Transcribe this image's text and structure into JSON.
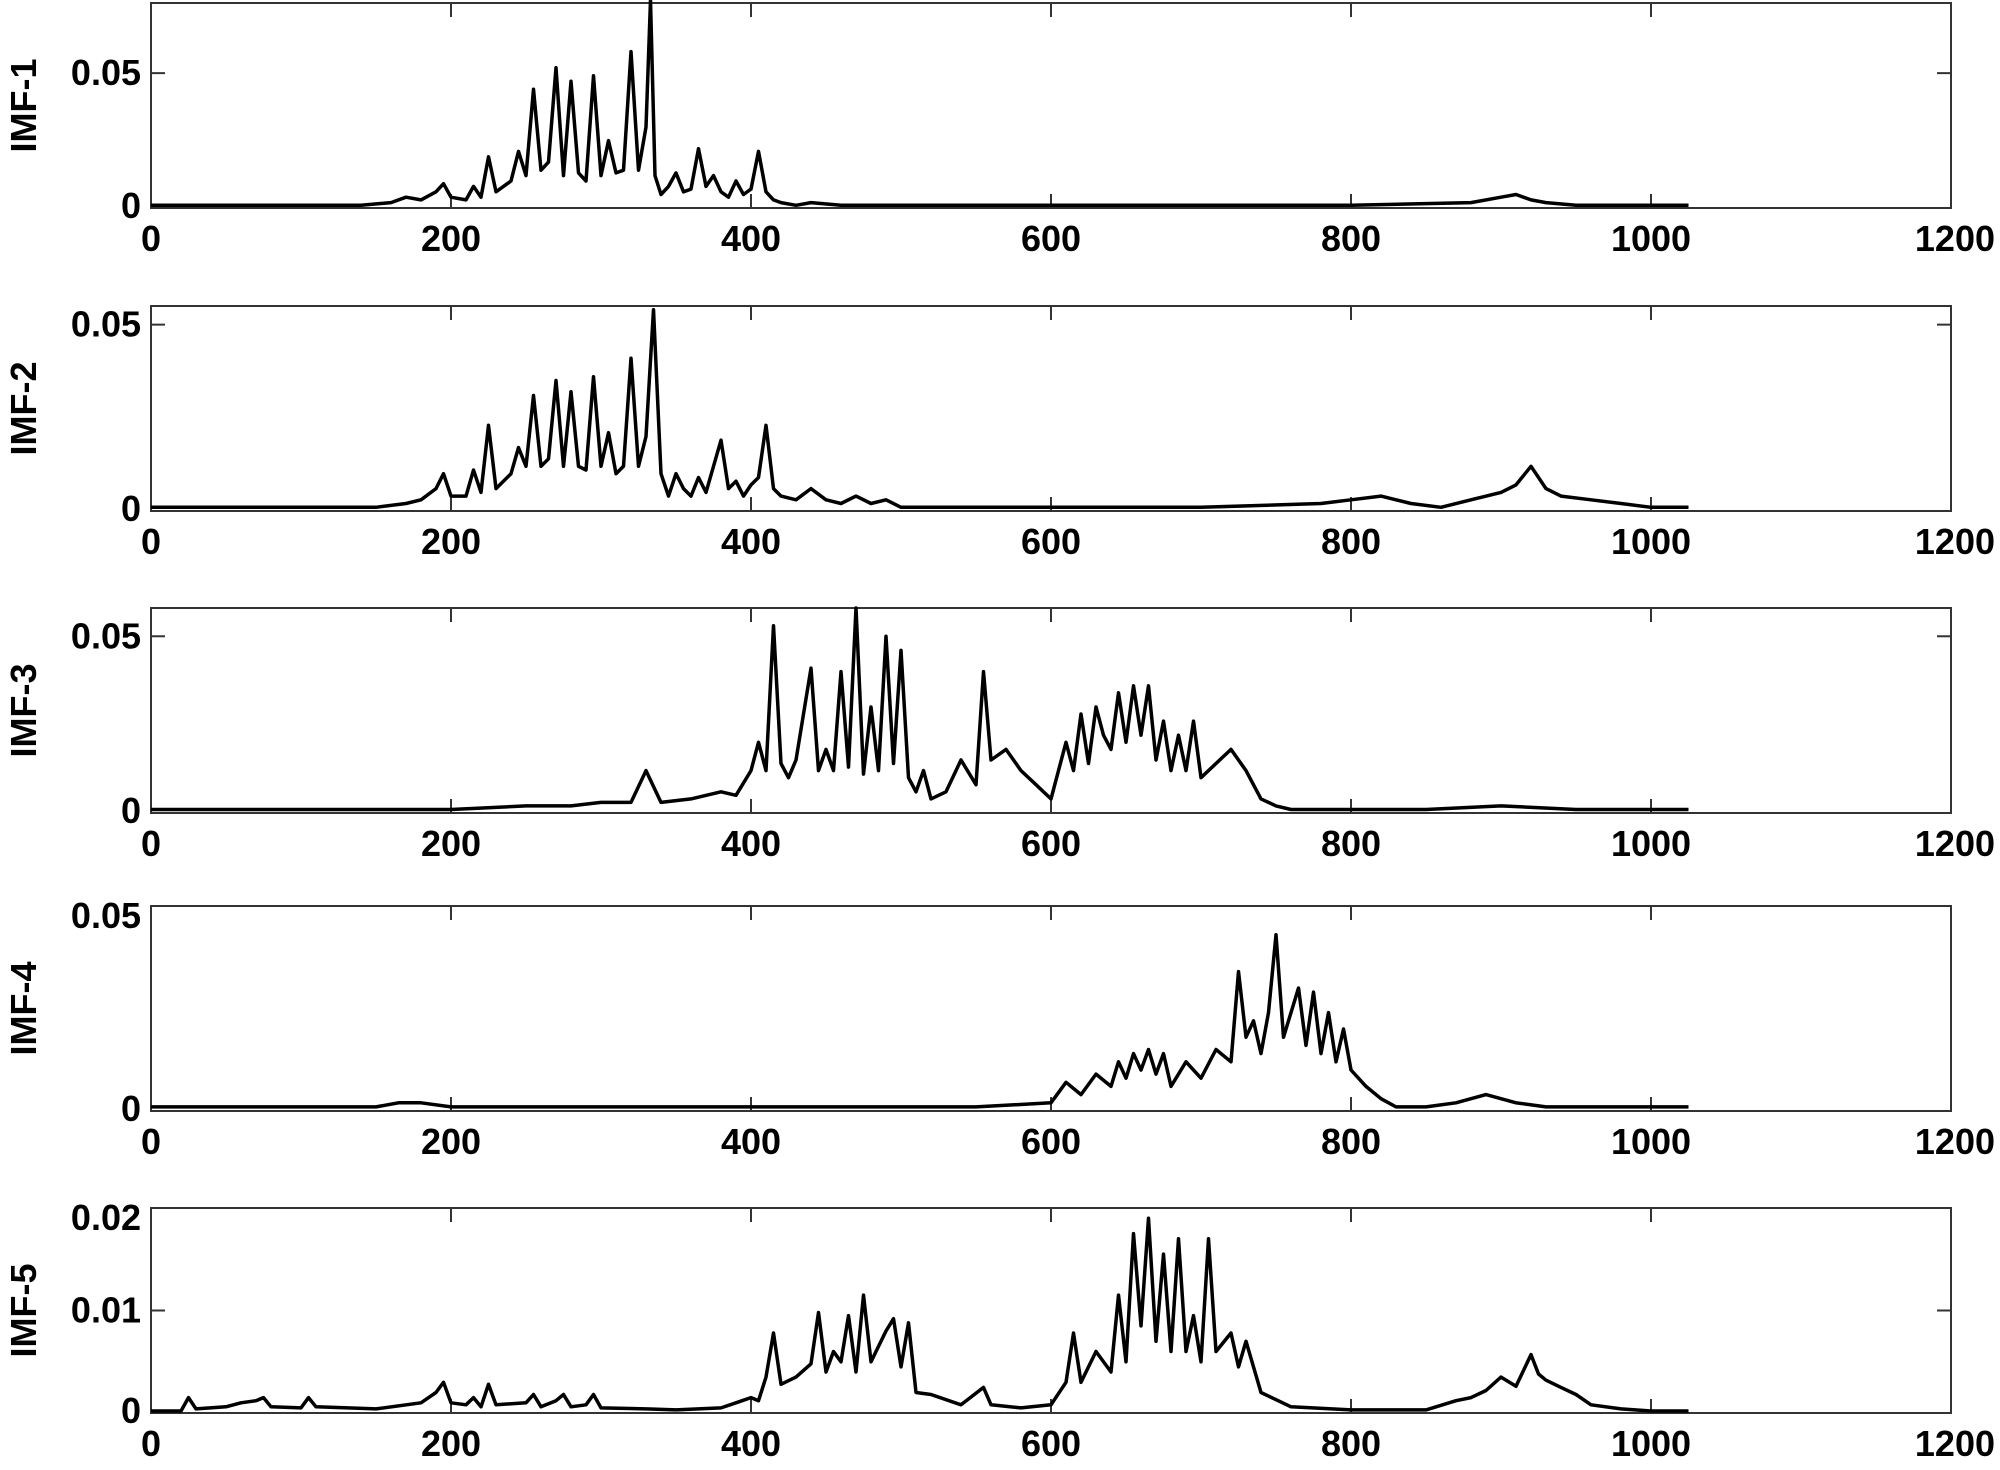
{
  "chart_data": [
    {
      "type": "line",
      "ylabel": "IMF-1",
      "xlim": [
        0,
        1200
      ],
      "ylim": [
        0,
        0.076
      ],
      "xticks": [
        "0",
        "200",
        "400",
        "600",
        "800",
        "1000",
        "1200"
      ],
      "yticks": [
        {
          "value": 0,
          "label": "0"
        },
        {
          "value": 0.05,
          "label": "0.05"
        }
      ],
      "x": [
        0,
        20,
        40,
        60,
        80,
        100,
        120,
        140,
        160,
        170,
        180,
        190,
        195,
        200,
        210,
        215,
        220,
        225,
        230,
        240,
        245,
        250,
        255,
        260,
        265,
        270,
        275,
        280,
        285,
        290,
        295,
        300,
        305,
        310,
        315,
        320,
        325,
        330,
        333,
        336,
        340,
        345,
        350,
        355,
        360,
        365,
        370,
        375,
        380,
        385,
        390,
        395,
        400,
        405,
        410,
        415,
        420,
        430,
        440,
        460,
        480,
        500,
        550,
        600,
        700,
        800,
        880,
        900,
        910,
        920,
        930,
        950,
        1000,
        1025
      ],
      "y": [
        0.001,
        0.001,
        0.001,
        0.001,
        0.001,
        0.001,
        0.001,
        0.001,
        0.002,
        0.004,
        0.003,
        0.006,
        0.009,
        0.004,
        0.003,
        0.008,
        0.004,
        0.019,
        0.006,
        0.01,
        0.021,
        0.012,
        0.044,
        0.014,
        0.017,
        0.052,
        0.012,
        0.047,
        0.013,
        0.01,
        0.049,
        0.012,
        0.025,
        0.013,
        0.014,
        0.058,
        0.014,
        0.03,
        0.077,
        0.012,
        0.005,
        0.008,
        0.013,
        0.006,
        0.007,
        0.022,
        0.008,
        0.012,
        0.006,
        0.004,
        0.01,
        0.005,
        0.007,
        0.021,
        0.006,
        0.003,
        0.002,
        0.001,
        0.002,
        0.001,
        0.001,
        0.001,
        0.001,
        0.001,
        0.001,
        0.001,
        0.002,
        0.004,
        0.005,
        0.003,
        0.002,
        0.001,
        0.001,
        0.001
      ]
    },
    {
      "type": "line",
      "ylabel": "IMF-2",
      "xlim": [
        0,
        1200
      ],
      "ylim": [
        0,
        0.055
      ],
      "xticks": [
        "0",
        "200",
        "400",
        "600",
        "800",
        "1000",
        "1200"
      ],
      "yticks": [
        {
          "value": 0,
          "label": "0"
        },
        {
          "value": 0.05,
          "label": "0.05"
        }
      ],
      "x": [
        0,
        40,
        80,
        120,
        150,
        170,
        180,
        190,
        195,
        200,
        210,
        215,
        220,
        225,
        230,
        240,
        245,
        250,
        255,
        260,
        265,
        270,
        275,
        280,
        285,
        290,
        295,
        300,
        305,
        310,
        315,
        320,
        325,
        330,
        335,
        340,
        345,
        350,
        355,
        360,
        365,
        370,
        375,
        380,
        385,
        390,
        395,
        400,
        405,
        410,
        415,
        420,
        430,
        440,
        450,
        460,
        470,
        480,
        490,
        500,
        520,
        560,
        600,
        700,
        780,
        800,
        820,
        840,
        860,
        880,
        900,
        910,
        920,
        930,
        940,
        960,
        980,
        1000,
        1025
      ],
      "y": [
        0.001,
        0.001,
        0.001,
        0.001,
        0.001,
        0.002,
        0.003,
        0.006,
        0.01,
        0.004,
        0.004,
        0.011,
        0.005,
        0.023,
        0.006,
        0.01,
        0.017,
        0.012,
        0.031,
        0.012,
        0.014,
        0.035,
        0.012,
        0.032,
        0.012,
        0.011,
        0.036,
        0.012,
        0.021,
        0.01,
        0.012,
        0.041,
        0.012,
        0.02,
        0.054,
        0.01,
        0.004,
        0.01,
        0.006,
        0.004,
        0.009,
        0.005,
        0.012,
        0.019,
        0.006,
        0.008,
        0.004,
        0.007,
        0.009,
        0.023,
        0.006,
        0.004,
        0.003,
        0.006,
        0.003,
        0.002,
        0.004,
        0.002,
        0.003,
        0.001,
        0.001,
        0.001,
        0.001,
        0.001,
        0.002,
        0.003,
        0.004,
        0.002,
        0.001,
        0.003,
        0.005,
        0.007,
        0.012,
        0.006,
        0.004,
        0.003,
        0.002,
        0.001,
        0.001
      ]
    },
    {
      "type": "line",
      "ylabel": "IMF-3",
      "xlim": [
        0,
        1200
      ],
      "ylim": [
        0,
        0.058
      ],
      "xticks": [
        "0",
        "200",
        "400",
        "600",
        "800",
        "1000",
        "1200"
      ],
      "yticks": [
        {
          "value": 0,
          "label": "0"
        },
        {
          "value": 0.05,
          "label": "0.05"
        }
      ],
      "x": [
        0,
        50,
        100,
        150,
        200,
        250,
        280,
        300,
        320,
        330,
        340,
        360,
        380,
        390,
        400,
        405,
        410,
        415,
        420,
        425,
        430,
        440,
        445,
        450,
        455,
        460,
        465,
        470,
        475,
        480,
        485,
        490,
        495,
        500,
        505,
        510,
        515,
        520,
        530,
        540,
        550,
        555,
        560,
        570,
        580,
        590,
        600,
        610,
        615,
        620,
        625,
        630,
        635,
        640,
        645,
        650,
        655,
        660,
        665,
        670,
        675,
        680,
        685,
        690,
        695,
        700,
        710,
        720,
        730,
        740,
        750,
        760,
        800,
        850,
        900,
        950,
        1000,
        1025
      ],
      "y": [
        0.001,
        0.001,
        0.001,
        0.001,
        0.001,
        0.002,
        0.002,
        0.003,
        0.003,
        0.012,
        0.003,
        0.004,
        0.006,
        0.005,
        0.012,
        0.02,
        0.012,
        0.053,
        0.014,
        0.01,
        0.015,
        0.041,
        0.012,
        0.018,
        0.012,
        0.04,
        0.013,
        0.058,
        0.011,
        0.03,
        0.012,
        0.05,
        0.014,
        0.046,
        0.01,
        0.006,
        0.012,
        0.004,
        0.006,
        0.015,
        0.008,
        0.04,
        0.015,
        0.018,
        0.012,
        0.008,
        0.004,
        0.02,
        0.012,
        0.028,
        0.014,
        0.03,
        0.022,
        0.018,
        0.034,
        0.02,
        0.036,
        0.022,
        0.036,
        0.015,
        0.026,
        0.012,
        0.022,
        0.012,
        0.026,
        0.01,
        0.014,
        0.018,
        0.012,
        0.004,
        0.002,
        0.001,
        0.001,
        0.001,
        0.002,
        0.001,
        0.001,
        0.001
      ]
    },
    {
      "type": "line",
      "ylabel": "IMF-4",
      "xlim": [
        0,
        1200
      ],
      "ylim": [
        0,
        0.05
      ],
      "xticks": [
        "0",
        "200",
        "400",
        "600",
        "800",
        "1000",
        "1200"
      ],
      "yticks": [
        {
          "value": 0,
          "label": "0"
        },
        {
          "value": 0.05,
          "label": "0.05"
        }
      ],
      "x": [
        0,
        50,
        100,
        150,
        165,
        180,
        200,
        250,
        300,
        330,
        350,
        400,
        450,
        500,
        550,
        600,
        610,
        620,
        630,
        640,
        645,
        650,
        655,
        660,
        665,
        670,
        675,
        680,
        690,
        700,
        710,
        720,
        725,
        730,
        735,
        740,
        745,
        750,
        755,
        760,
        765,
        770,
        775,
        780,
        785,
        790,
        795,
        800,
        810,
        820,
        830,
        850,
        870,
        880,
        890,
        900,
        910,
        930,
        950,
        1000,
        1025
      ],
      "y": [
        0.001,
        0.001,
        0.001,
        0.001,
        0.002,
        0.002,
        0.001,
        0.001,
        0.001,
        0.001,
        0.001,
        0.001,
        0.001,
        0.001,
        0.001,
        0.002,
        0.007,
        0.004,
        0.009,
        0.006,
        0.012,
        0.008,
        0.014,
        0.01,
        0.015,
        0.009,
        0.014,
        0.006,
        0.012,
        0.008,
        0.015,
        0.012,
        0.034,
        0.018,
        0.022,
        0.014,
        0.024,
        0.043,
        0.018,
        0.024,
        0.03,
        0.016,
        0.029,
        0.014,
        0.024,
        0.012,
        0.02,
        0.01,
        0.006,
        0.003,
        0.001,
        0.001,
        0.002,
        0.003,
        0.004,
        0.003,
        0.002,
        0.001,
        0.001,
        0.001,
        0.001
      ]
    },
    {
      "type": "line",
      "ylabel": "IMF-5",
      "xlim": [
        0,
        1200
      ],
      "ylim": [
        0,
        0.02
      ],
      "xticks": [
        "0",
        "200",
        "400",
        "600",
        "800",
        "1000",
        "1200"
      ],
      "yticks": [
        {
          "value": 0,
          "label": "0"
        },
        {
          "value": 0.01,
          "label": "0.01"
        },
        {
          "value": 0.02,
          "label": "0.02"
        }
      ],
      "x": [
        0,
        20,
        25,
        30,
        50,
        60,
        70,
        75,
        80,
        100,
        105,
        110,
        150,
        180,
        190,
        195,
        200,
        210,
        215,
        220,
        225,
        230,
        250,
        255,
        260,
        270,
        275,
        280,
        290,
        295,
        300,
        330,
        350,
        380,
        390,
        400,
        405,
        410,
        415,
        420,
        430,
        440,
        445,
        450,
        455,
        460,
        465,
        470,
        475,
        480,
        485,
        490,
        495,
        500,
        505,
        510,
        520,
        540,
        555,
        560,
        580,
        600,
        610,
        615,
        620,
        625,
        630,
        640,
        645,
        650,
        655,
        660,
        665,
        670,
        675,
        680,
        685,
        690,
        695,
        700,
        705,
        710,
        720,
        725,
        730,
        740,
        760,
        800,
        850,
        870,
        880,
        890,
        900,
        910,
        920,
        925,
        930,
        940,
        950,
        960,
        980,
        1000,
        1025
      ],
      "y": [
        0.0002,
        0.0002,
        0.0015,
        0.0004,
        0.0006,
        0.001,
        0.0012,
        0.0015,
        0.0006,
        0.0005,
        0.0015,
        0.0006,
        0.0004,
        0.001,
        0.002,
        0.003,
        0.001,
        0.0008,
        0.0015,
        0.0006,
        0.0028,
        0.0008,
        0.001,
        0.0018,
        0.0006,
        0.0012,
        0.0018,
        0.0006,
        0.0008,
        0.0018,
        0.0005,
        0.0004,
        0.0003,
        0.0005,
        0.001,
        0.0015,
        0.0012,
        0.0035,
        0.0078,
        0.0028,
        0.0035,
        0.0048,
        0.0098,
        0.004,
        0.006,
        0.005,
        0.0095,
        0.004,
        0.0115,
        0.005,
        0.0065,
        0.008,
        0.0092,
        0.0045,
        0.0088,
        0.002,
        0.0018,
        0.0008,
        0.0025,
        0.0008,
        0.0005,
        0.0008,
        0.003,
        0.0078,
        0.003,
        0.0045,
        0.006,
        0.004,
        0.0115,
        0.005,
        0.0175,
        0.0085,
        0.019,
        0.007,
        0.0155,
        0.006,
        0.017,
        0.006,
        0.0095,
        0.005,
        0.017,
        0.006,
        0.0078,
        0.0045,
        0.007,
        0.002,
        0.0006,
        0.0003,
        0.0003,
        0.0012,
        0.0015,
        0.0022,
        0.0035,
        0.0026,
        0.0057,
        0.0038,
        0.0032,
        0.0025,
        0.0018,
        0.0008,
        0.0004,
        0.0002,
        0.0002
      ]
    }
  ]
}
